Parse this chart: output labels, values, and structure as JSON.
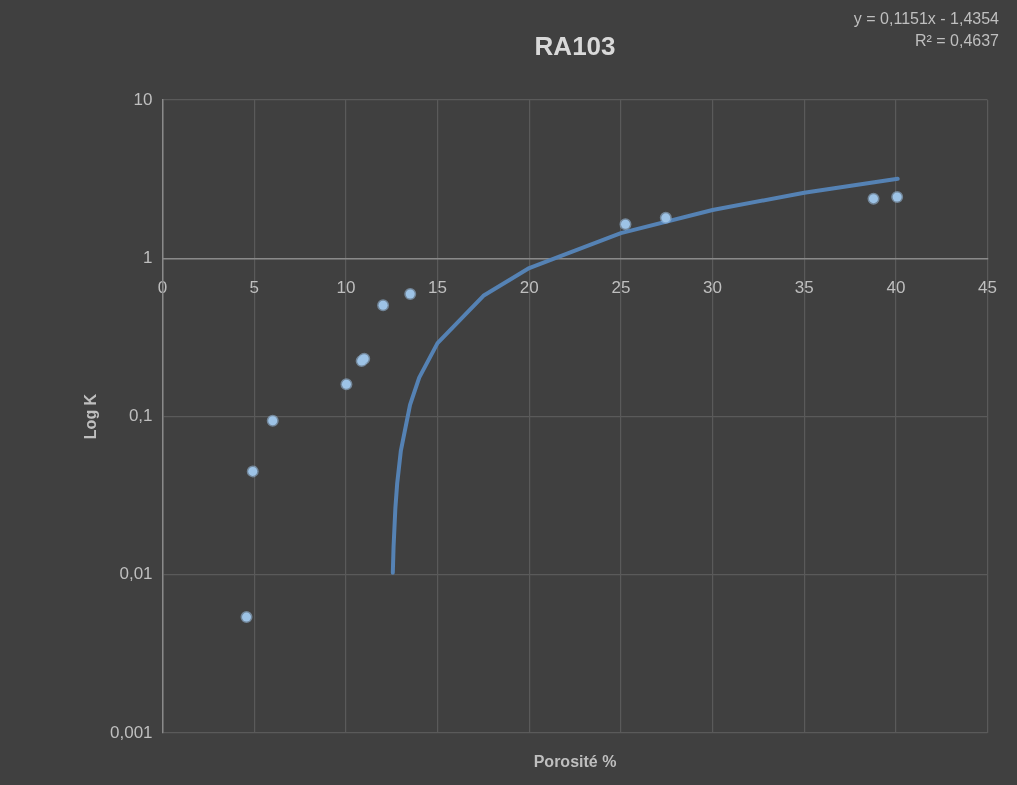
{
  "chart_data": {
    "type": "scatter",
    "title": "RA103",
    "xlabel": "Porosité %",
    "ylabel": "Log K",
    "annotations": [
      "y = 0,1151x - 1,4354",
      "R² = 0,4637"
    ],
    "series": [
      {
        "type": "scatter",
        "marker": "circle",
        "color": "#9dc3e6",
        "x": [
          4.58,
          4.92,
          6.01,
          10.03,
          10.86,
          11.0,
          12.03,
          13.51,
          25.25,
          27.45,
          38.78,
          40.07
        ],
        "values": [
          0.0054,
          0.045,
          0.094,
          0.16,
          0.224,
          0.232,
          0.505,
          0.594,
          1.64,
          1.8,
          2.38,
          2.44
        ]
      },
      {
        "type": "line",
        "marker": "none",
        "color": "#5582b4",
        "x": [
          12.56,
          12.6,
          12.7,
          12.8,
          13,
          13.5,
          14,
          15,
          17.5,
          20,
          25,
          30,
          35,
          40.1
        ],
        "values": [
          0.0103,
          0.0149,
          0.0264,
          0.0379,
          0.0609,
          0.1185,
          0.176,
          0.291,
          0.579,
          0.867,
          1.442,
          2.018,
          2.593,
          3.18
        ]
      }
    ],
    "xlim": [
      0,
      45
    ],
    "xticks": [
      0,
      5,
      10,
      15,
      20,
      25,
      30,
      35,
      40,
      45
    ],
    "ylim": [
      0.001,
      10
    ],
    "yticks": [
      {
        "value": 0.001,
        "label": "0,001"
      },
      {
        "value": 0.01,
        "label": "0,01"
      },
      {
        "value": 0.1,
        "label": "0,1"
      },
      {
        "value": 1,
        "label": "1"
      },
      {
        "value": 10,
        "label": "10"
      }
    ],
    "log": "y",
    "grid": true
  }
}
